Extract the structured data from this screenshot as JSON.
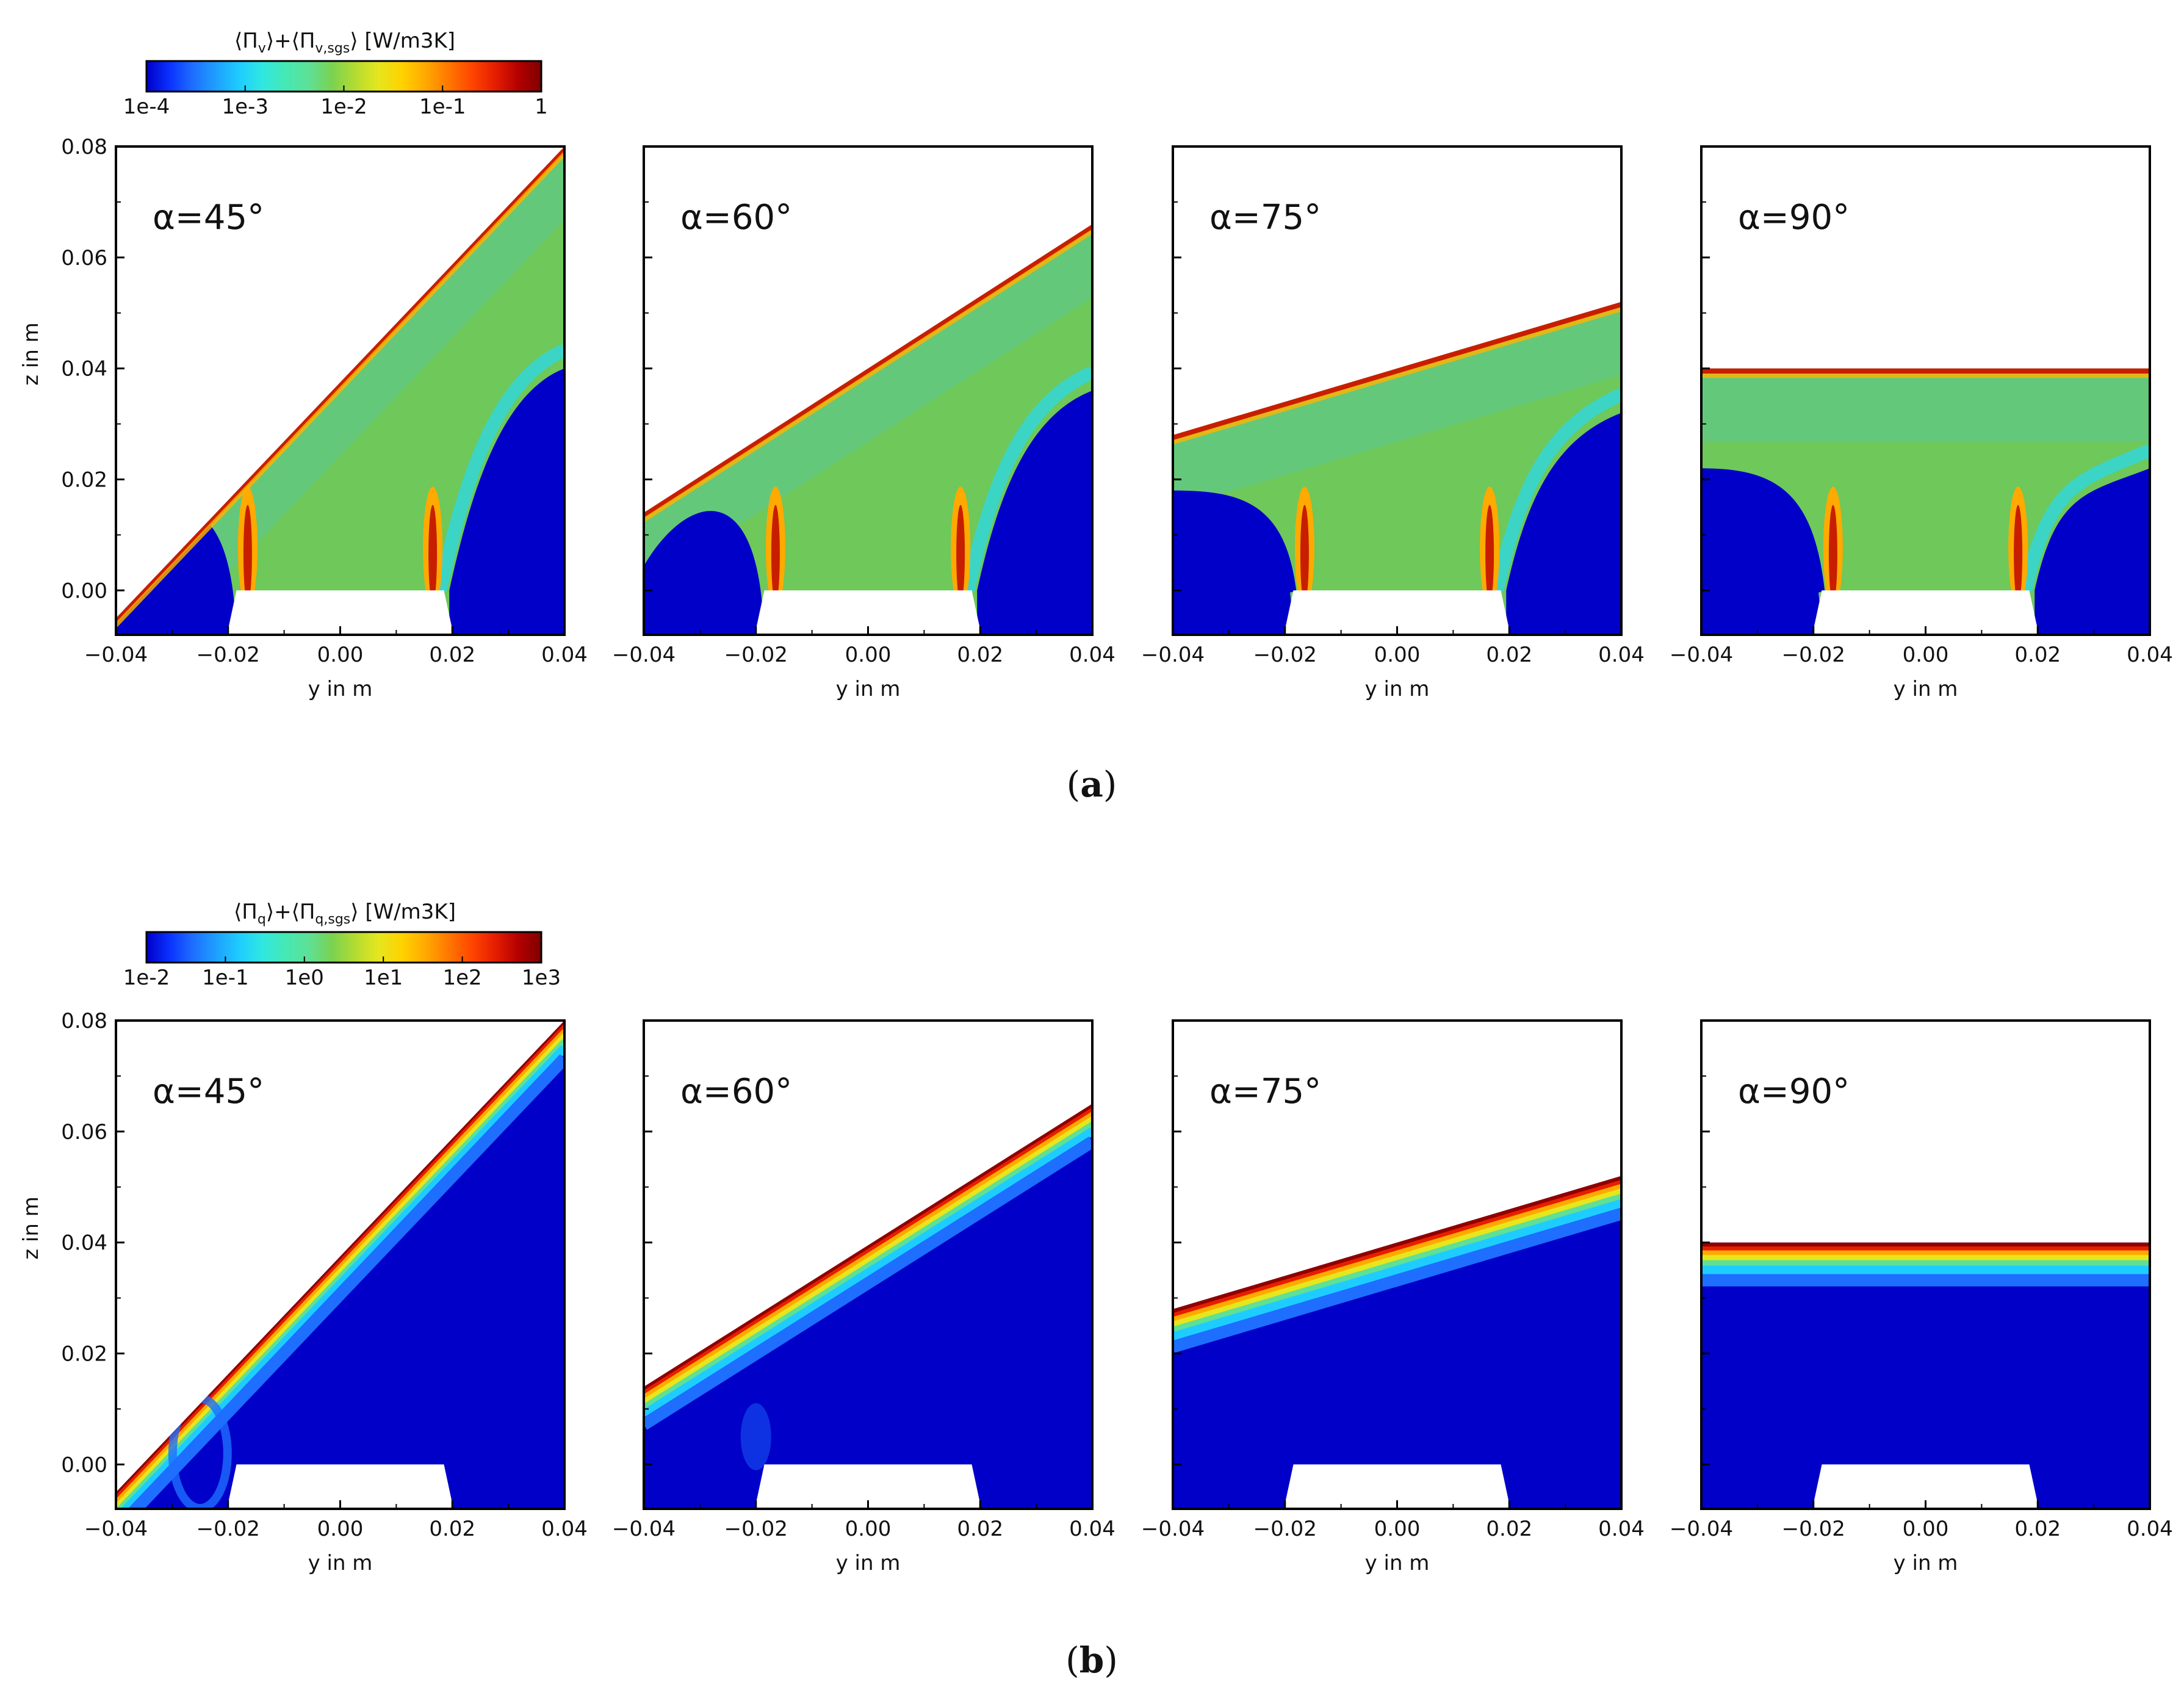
{
  "chart_data": [
    {
      "type": "heatmap",
      "panel_caption_letter": "a",
      "colorbar": {
        "title_main": "⟨Π",
        "title_sub1": "v",
        "title_mid": "⟩+⟨Π",
        "title_sub2": "v,sgs",
        "title_end": "⟩",
        "unit": "[W/m3K]",
        "scale": "log",
        "range": [
          0.0001,
          1
        ],
        "tick_labels": [
          "1e-4",
          "1e-3",
          "1e-2",
          "1e-1",
          "1"
        ],
        "colors": [
          "#0000c8",
          "#0a32ff",
          "#1e6eff",
          "#1ea0ff",
          "#1ecdff",
          "#30e8e0",
          "#46e8b4",
          "#5ee096",
          "#7ad250",
          "#b4dc32",
          "#e6e61e",
          "#ffd200",
          "#ffaa00",
          "#ff7800",
          "#ff4600",
          "#e61e00",
          "#b40000",
          "#800000"
        ]
      },
      "xlabel": "y in m",
      "ylabel": "z in m",
      "xlim": [
        -0.04,
        0.04
      ],
      "ylim": [
        -0.008,
        0.08
      ],
      "x_tick_labels": [
        "−0.04",
        "−0.02",
        "0.00",
        "0.02",
        "0.04"
      ],
      "y_tick_labels": [
        "0.08",
        "0.06",
        "0.04",
        "0.02",
        "0.00"
      ],
      "subplots": [
        {
          "label": "α=45°",
          "angle_deg": 45,
          "top_left_z": -0.005,
          "top_right_z": 0.08
        },
        {
          "label": "α=60°",
          "angle_deg": 60,
          "top_left_z": 0.014,
          "top_right_z": 0.066
        },
        {
          "label": "α=75°",
          "angle_deg": 75,
          "top_left_z": 0.028,
          "top_right_z": 0.052
        },
        {
          "label": "α=90°",
          "angle_deg": 90,
          "top_left_z": 0.04,
          "top_right_z": 0.04
        }
      ]
    },
    {
      "type": "heatmap",
      "panel_caption_letter": "b",
      "colorbar": {
        "title_main": "⟨Π",
        "title_sub1": "q",
        "title_mid": "⟩+⟨Π",
        "title_sub2": "q,sgs",
        "title_end": "⟩",
        "unit": "[W/m3K]",
        "scale": "log",
        "range": [
          0.01,
          1000
        ],
        "tick_labels": [
          "1e-2",
          "1e-1",
          "1e0",
          "1e1",
          "1e2",
          "1e3"
        ],
        "colors": [
          "#0000c8",
          "#0a32ff",
          "#1e6eff",
          "#1ea0ff",
          "#1ecdff",
          "#30e8e0",
          "#46e8b4",
          "#5ee096",
          "#7ad250",
          "#b4dc32",
          "#e6e61e",
          "#ffd200",
          "#ffaa00",
          "#ff7800",
          "#ff4600",
          "#e61e00",
          "#b40000",
          "#800000"
        ]
      },
      "xlabel": "y in m",
      "ylabel": "z in m",
      "xlim": [
        -0.04,
        0.04
      ],
      "ylim": [
        -0.008,
        0.08
      ],
      "x_tick_labels": [
        "−0.04",
        "−0.02",
        "0.00",
        "0.02",
        "0.04"
      ],
      "y_tick_labels": [
        "0.08",
        "0.06",
        "0.04",
        "0.02",
        "0.00"
      ],
      "subplots": [
        {
          "label": "α=45°",
          "angle_deg": 45,
          "top_left_z": -0.005,
          "top_right_z": 0.08
        },
        {
          "label": "α=60°",
          "angle_deg": 60,
          "top_left_z": 0.014,
          "top_right_z": 0.065
        },
        {
          "label": "α=75°",
          "angle_deg": 75,
          "top_left_z": 0.028,
          "top_right_z": 0.052
        },
        {
          "label": "α=90°",
          "angle_deg": 90,
          "top_left_z": 0.04,
          "top_right_z": 0.04
        }
      ]
    }
  ]
}
